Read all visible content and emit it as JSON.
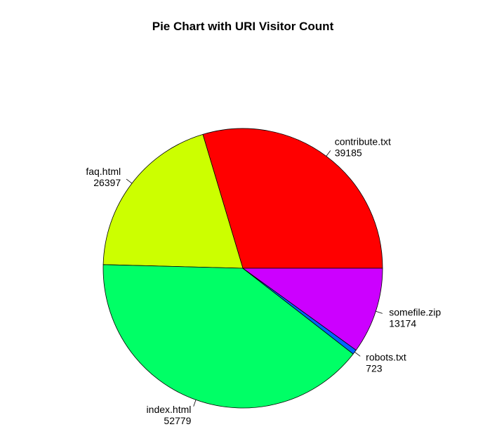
{
  "chart_data": {
    "type": "pie",
    "title": "Pie Chart with URI Visitor Count",
    "direction": "counterclockwise",
    "start_angle_deg": 0,
    "slices": [
      {
        "label": "contribute.txt",
        "value": 39185,
        "value_text": "39185",
        "color": "#FF0000"
      },
      {
        "label": "faq.html",
        "value": 26397,
        "value_text": "26397",
        "color": "#CCFF00"
      },
      {
        "label": "index.html",
        "value": 52779,
        "value_text": "52779",
        "color": "#00FF66"
      },
      {
        "label": "robots.txt",
        "value": 723,
        "value_text": "723",
        "color": "#0066FF"
      },
      {
        "label": "somefile.zip",
        "value": 13174,
        "value_text": "13174",
        "color": "#CC00FF"
      }
    ]
  }
}
